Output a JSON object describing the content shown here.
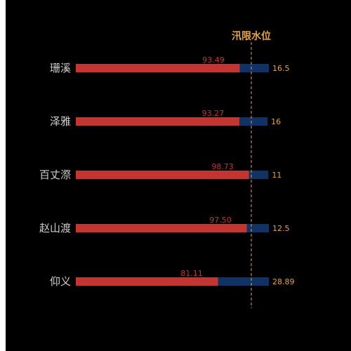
{
  "chart_data": {
    "type": "bar",
    "orientation": "horizontal",
    "stacked": true,
    "categories": [
      "珊溪",
      "泽雅",
      "百丈漈",
      "赵山渡",
      "仰义"
    ],
    "series": [
      {
        "values": [
          93.49,
          93.27,
          98.73,
          97.5,
          81.11
        ],
        "color": "#c23531",
        "label_color": "#c23531"
      },
      {
        "values": [
          16.5,
          16,
          11,
          12.5,
          28.89
        ],
        "color": "#0f3365",
        "label_color": "#e8a33a"
      }
    ],
    "reference_line": {
      "label": "汛限水位",
      "value": 100,
      "color": "#e8a33a",
      "style": "dashed"
    },
    "xlim": [
      0,
      110
    ],
    "grid": false,
    "background": "#000000"
  }
}
